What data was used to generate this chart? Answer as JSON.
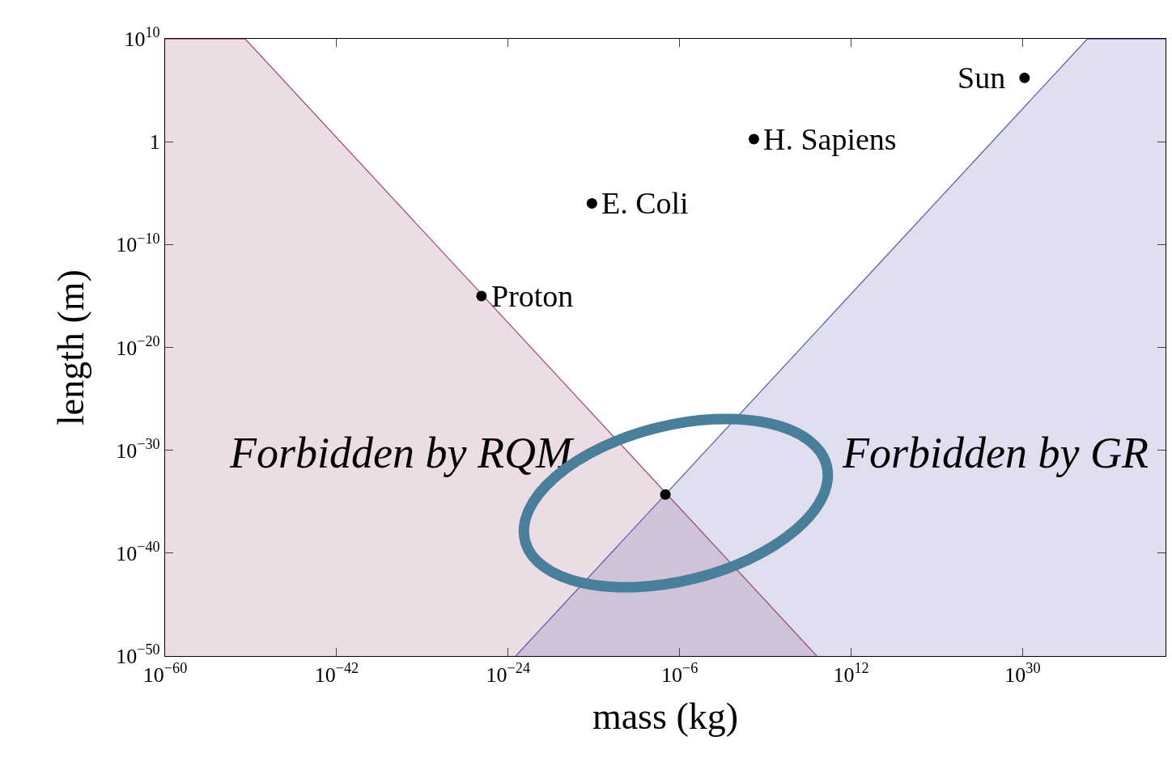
{
  "chart_data": {
    "type": "scatter",
    "xlabel": "mass (kg)",
    "ylabel": "length (m)",
    "log": "xy",
    "grid": false,
    "xlim": [
      1e-60,
      1e+45
    ],
    "ylim": [
      1e-50,
      10000000000.0
    ],
    "xticks": [
      {
        "value": 1e-60,
        "label": "10$^{−60}$"
      },
      {
        "value": 1e-42,
        "label": "10$^{−42}$"
      },
      {
        "value": 1e-24,
        "label": "10$^{−24}$"
      },
      {
        "value": 1e-06,
        "label": "10$^{−6}$"
      },
      {
        "value": 1000000000000.0,
        "label": "10$^{12}$"
      },
      {
        "value": 1e+30,
        "label": "10$^{30}$"
      }
    ],
    "yticks": [
      {
        "value": 1e-50,
        "label": "10$^{−50}$"
      },
      {
        "value": 1e-40,
        "label": "10$^{−40}$"
      },
      {
        "value": 1e-30,
        "label": "10$^{−30}$"
      },
      {
        "value": 1e-20,
        "label": "10$^{−20}$"
      },
      {
        "value": 1e-10,
        "label": "10$^{−10}$"
      },
      1,
      {
        "value": 10000000000.0,
        "label": "10$^{10}$"
      }
    ],
    "series": [
      {
        "type": "area",
        "color": "#a0507a",
        "x": [
          1e-60,
          2.5e-52,
          250000000.0
        ],
        "values": [
          10000000000.0,
          10000000000.0,
          1e-50
        ]
      },
      {
        "type": "area",
        "color": "#6060b0",
        "x": [
          6.3e-24,
          6.3e+36,
          1e+45
        ],
        "values": [
          1e-50,
          10000000000.0,
          10000000000.0
        ]
      },
      {
        "marker": "circle",
        "color": "#000000",
        "x": [
          1.6e-27,
          6.3e-16,
          63,
          1.6e+30,
          3.2e-08
        ],
        "values": [
          1e-15,
          1e-06,
          1.8,
          1600000.0,
          5e-35
        ]
      }
    ],
    "annotations": [
      {
        "text": "Proton",
        "x": 1.6e-27,
        "y": 1e-15
      },
      {
        "text": "E. Coli",
        "x": 6.3e-16,
        "y": 1e-06
      },
      {
        "text": "H. Sapiens",
        "x": 63,
        "y": 1.8
      },
      {
        "text": "Sun",
        "x": 1.6e+30,
        "y": 1600000.0
      },
      "Forbidden by RQM",
      "Forbidden by GR"
    ]
  }
}
